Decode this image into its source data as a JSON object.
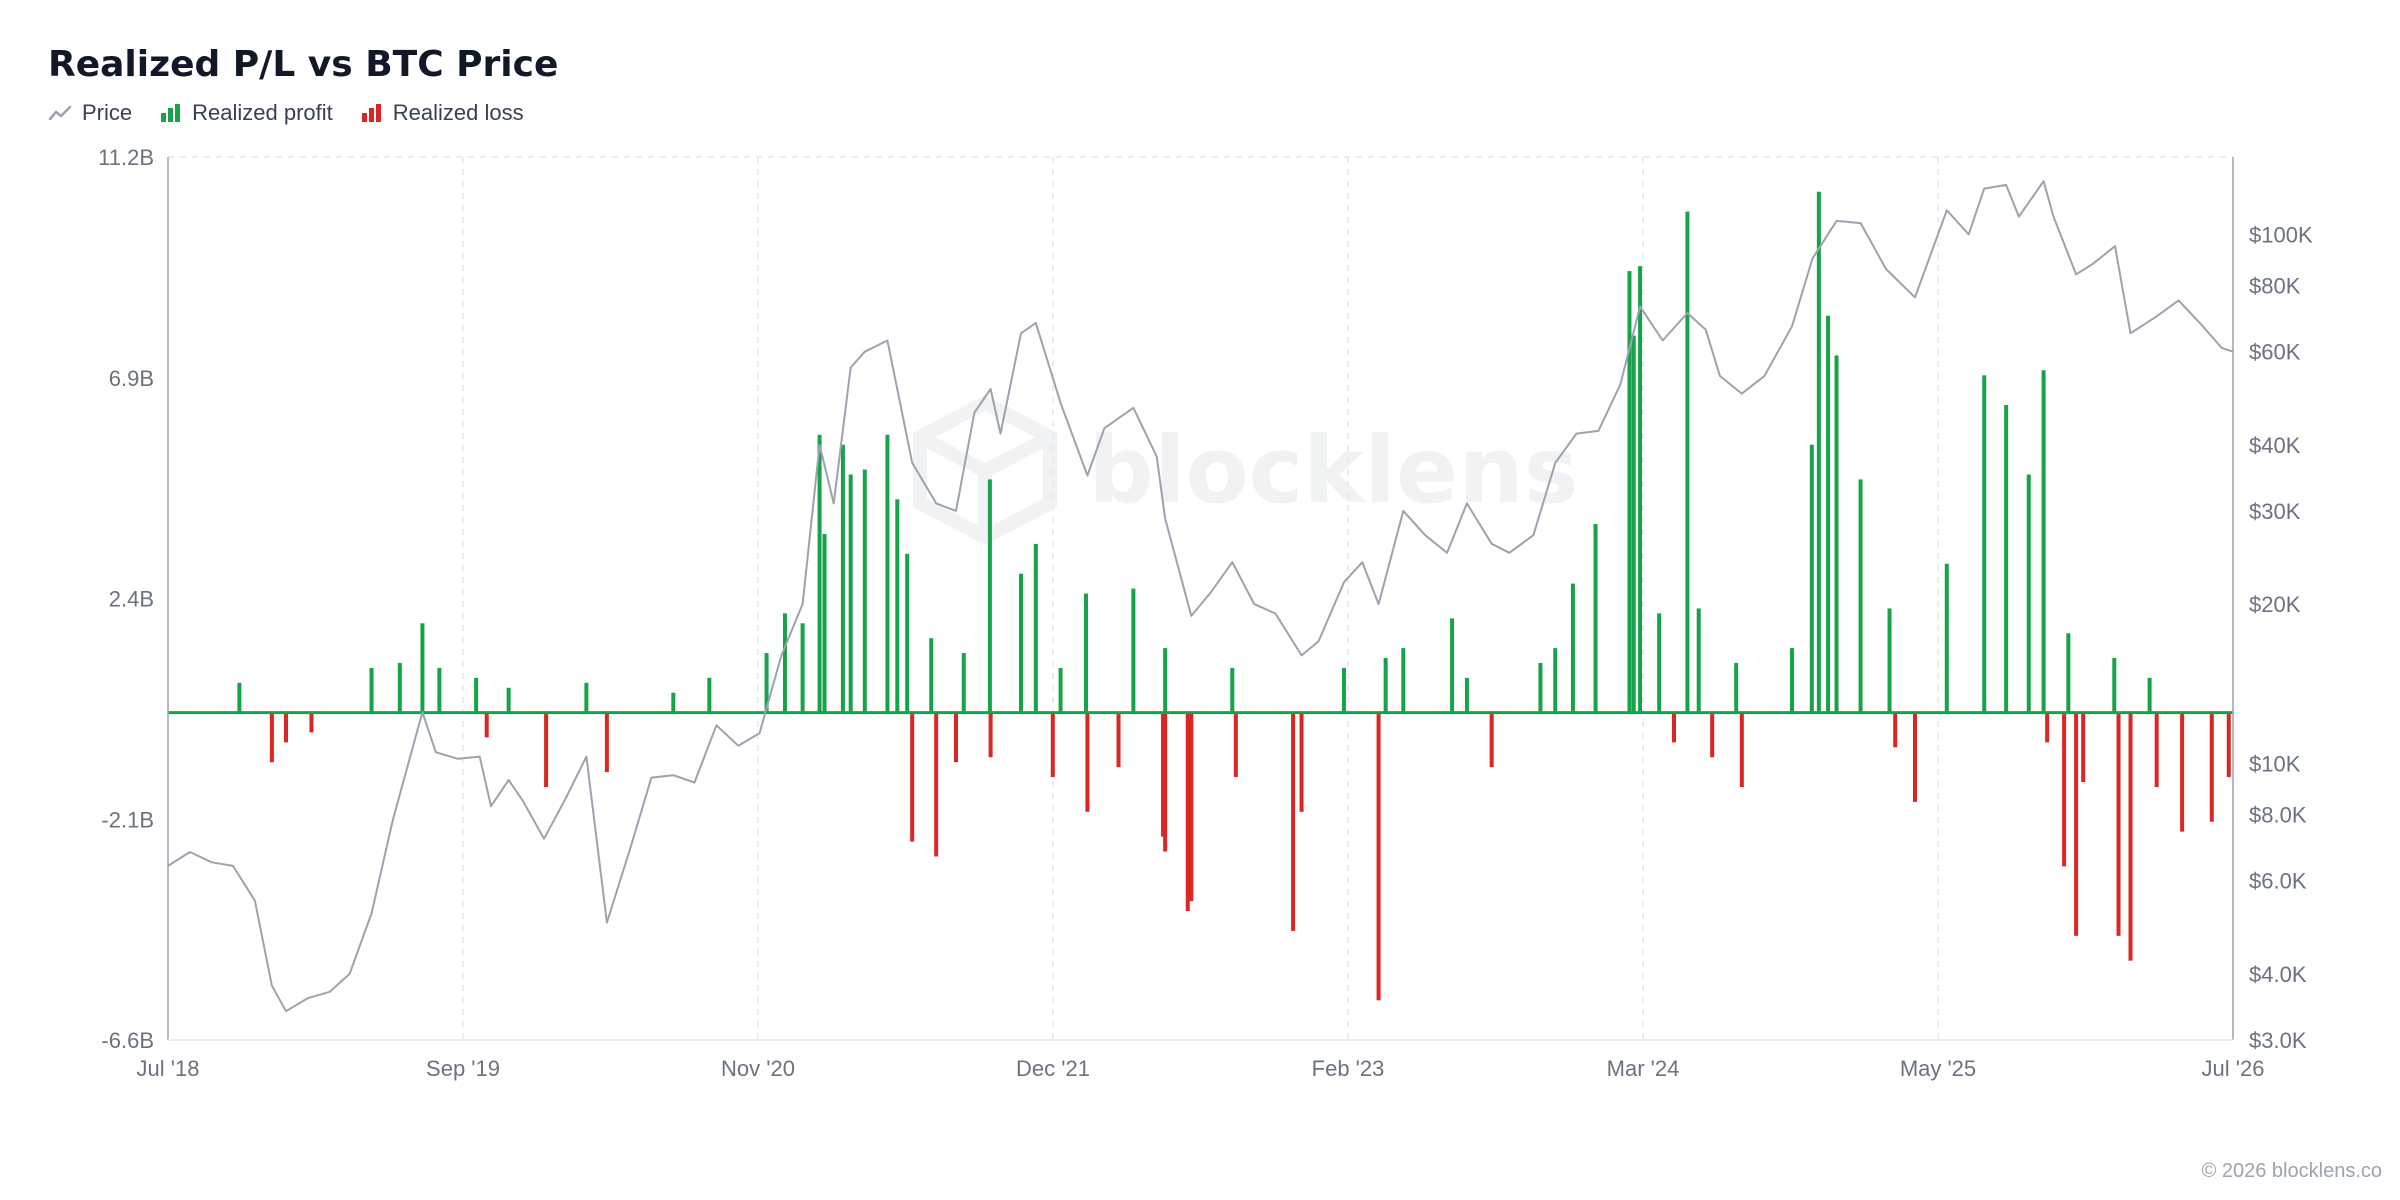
{
  "chart_data": {
    "type": "bar",
    "title": "Realized P/L vs BTC Price",
    "xlabel": "",
    "ylabel": "",
    "legend": {
      "placement": "top-left",
      "items": [
        "Price",
        "Realized profit",
        "Realized loss"
      ]
    },
    "colors": {
      "price": "#9ca3af",
      "profit": "#16a34a",
      "loss": "#dc2626"
    },
    "x_ticks": [
      "Jul '18",
      "Sep '19",
      "Nov '20",
      "Dec '21",
      "Feb '23",
      "Mar '24",
      "May '25",
      "Jul '26"
    ],
    "x_range": [
      "2018-07",
      "2026-07"
    ],
    "y_left": {
      "ticks": [
        "11.2B",
        "6.9B",
        "2.4B",
        "-2.1B",
        "-6.6B"
      ],
      "range": [
        -6.6,
        11.2
      ],
      "unit": "B"
    },
    "y_right": {
      "scale": "log",
      "ticks": [
        "$100K",
        "$80K",
        "$60K",
        "$40K",
        "$30K",
        "$20K",
        "$10K",
        "$8.0K",
        "$6.0K",
        "$4.0K",
        "$3.0K"
      ],
      "tick_values": [
        100000,
        80000,
        60000,
        40000,
        30000,
        20000,
        10000,
        8000,
        6000,
        4000,
        3000
      ],
      "range": [
        3000,
        140000
      ]
    },
    "grid": {
      "vertical": true,
      "horizontal": false
    },
    "series": [
      {
        "name": "Price",
        "type": "line",
        "points": [
          [
            "2018-07-01",
            6400
          ],
          [
            "2018-08-01",
            6800
          ],
          [
            "2018-09-01",
            6500
          ],
          [
            "2018-10-01",
            6400
          ],
          [
            "2018-11-01",
            5500
          ],
          [
            "2018-11-25",
            3800
          ],
          [
            "2018-12-15",
            3400
          ],
          [
            "2019-01-15",
            3600
          ],
          [
            "2019-02-15",
            3700
          ],
          [
            "2019-03-15",
            4000
          ],
          [
            "2019-04-15",
            5200
          ],
          [
            "2019-05-15",
            7800
          ],
          [
            "2019-06-26",
            12500
          ],
          [
            "2019-07-15",
            10500
          ],
          [
            "2019-08-15",
            10200
          ],
          [
            "2019-09-15",
            10300
          ],
          [
            "2019-10-01",
            8300
          ],
          [
            "2019-10-26",
            9300
          ],
          [
            "2019-11-15",
            8500
          ],
          [
            "2019-12-15",
            7200
          ],
          [
            "2020-01-15",
            8600
          ],
          [
            "2020-02-13",
            10300
          ],
          [
            "2020-03-13",
            5000
          ],
          [
            "2020-04-15",
            6900
          ],
          [
            "2020-05-15",
            9400
          ],
          [
            "2020-06-15",
            9500
          ],
          [
            "2020-07-15",
            9200
          ],
          [
            "2020-08-15",
            11800
          ],
          [
            "2020-09-15",
            10800
          ],
          [
            "2020-10-15",
            11400
          ],
          [
            "2020-11-15",
            16000
          ],
          [
            "2020-12-15",
            20000
          ],
          [
            "2021-01-08",
            40000
          ],
          [
            "2021-01-28",
            31000
          ],
          [
            "2021-02-21",
            56000
          ],
          [
            "2021-03-13",
            60000
          ],
          [
            "2021-04-14",
            63000
          ],
          [
            "2021-05-19",
            37000
          ],
          [
            "2021-06-22",
            31000
          ],
          [
            "2021-07-20",
            30000
          ],
          [
            "2021-08-15",
            46000
          ],
          [
            "2021-09-07",
            51000
          ],
          [
            "2021-09-21",
            42000
          ],
          [
            "2021-10-20",
            65000
          ],
          [
            "2021-11-10",
            68000
          ],
          [
            "2021-12-15",
            48000
          ],
          [
            "2022-01-22",
            35000
          ],
          [
            "2022-02-15",
            43000
          ],
          [
            "2022-03-28",
            47000
          ],
          [
            "2022-04-30",
            38000
          ],
          [
            "2022-05-12",
            29000
          ],
          [
            "2022-06-18",
            19000
          ],
          [
            "2022-07-15",
            21000
          ],
          [
            "2022-08-15",
            24000
          ],
          [
            "2022-09-15",
            20000
          ],
          [
            "2022-10-15",
            19200
          ],
          [
            "2022-11-21",
            16000
          ],
          [
            "2022-12-15",
            17000
          ],
          [
            "2023-01-20",
            22000
          ],
          [
            "2023-02-15",
            24000
          ],
          [
            "2023-03-10",
            20000
          ],
          [
            "2023-04-14",
            30000
          ],
          [
            "2023-05-15",
            27000
          ],
          [
            "2023-06-15",
            25000
          ],
          [
            "2023-07-13",
            31000
          ],
          [
            "2023-08-17",
            26000
          ],
          [
            "2023-09-11",
            25000
          ],
          [
            "2023-10-15",
            27000
          ],
          [
            "2023-11-15",
            37000
          ],
          [
            "2023-12-15",
            42000
          ],
          [
            "2024-01-15",
            42500
          ],
          [
            "2024-02-15",
            52000
          ],
          [
            "2024-03-14",
            73000
          ],
          [
            "2024-04-15",
            63000
          ],
          [
            "2024-05-20",
            71000
          ],
          [
            "2024-06-15",
            66000
          ],
          [
            "2024-07-05",
            54000
          ],
          [
            "2024-08-05",
            50000
          ],
          [
            "2024-09-06",
            54000
          ],
          [
            "2024-10-15",
            67000
          ],
          [
            "2024-11-13",
            90000
          ],
          [
            "2024-12-17",
            106000
          ],
          [
            "2025-01-20",
            105000
          ],
          [
            "2025-02-25",
            86000
          ],
          [
            "2025-04-07",
            76000
          ],
          [
            "2025-05-22",
            111000
          ],
          [
            "2025-06-22",
            100000
          ],
          [
            "2025-07-14",
            122000
          ],
          [
            "2025-08-14",
            124000
          ],
          [
            "2025-09-01",
            108000
          ],
          [
            "2025-10-06",
            126000
          ],
          [
            "2025-10-20",
            108000
          ],
          [
            "2025-11-21",
            84000
          ],
          [
            "2025-12-15",
            88000
          ],
          [
            "2026-01-15",
            95000
          ],
          [
            "2026-02-06",
            65000
          ],
          [
            "2026-03-15",
            70000
          ],
          [
            "2026-04-15",
            75000
          ],
          [
            "2026-05-15",
            68000
          ],
          [
            "2026-06-15",
            61000
          ],
          [
            "2026-07-01",
            60000
          ]
        ]
      },
      {
        "name": "Realized profit",
        "type": "bar",
        "unit": "B",
        "points": [
          [
            "2018-10-10",
            0.6
          ],
          [
            "2019-04-15",
            0.9
          ],
          [
            "2019-05-25",
            1.0
          ],
          [
            "2019-06-26",
            1.8
          ],
          [
            "2019-07-20",
            0.9
          ],
          [
            "2019-09-10",
            0.7
          ],
          [
            "2019-10-26",
            0.5
          ],
          [
            "2020-02-13",
            0.6
          ],
          [
            "2020-06-15",
            0.4
          ],
          [
            "2020-08-05",
            0.7
          ],
          [
            "2020-10-25",
            1.2
          ],
          [
            "2020-11-20",
            2.0
          ],
          [
            "2020-12-15",
            1.8
          ],
          [
            "2021-01-08",
            5.6
          ],
          [
            "2021-01-15",
            3.6
          ],
          [
            "2021-02-10",
            5.4
          ],
          [
            "2021-02-21",
            4.8
          ],
          [
            "2021-03-13",
            4.9
          ],
          [
            "2021-04-14",
            5.6
          ],
          [
            "2021-04-28",
            4.3
          ],
          [
            "2021-05-12",
            3.2
          ],
          [
            "2021-06-15",
            1.5
          ],
          [
            "2021-07-31",
            1.2
          ],
          [
            "2021-09-06",
            4.7
          ],
          [
            "2021-10-20",
            2.8
          ],
          [
            "2021-11-10",
            3.4
          ],
          [
            "2021-12-15",
            0.9
          ],
          [
            "2022-01-20",
            2.4
          ],
          [
            "2022-03-28",
            2.5
          ],
          [
            "2022-05-12",
            1.3
          ],
          [
            "2022-08-15",
            0.9
          ],
          [
            "2023-01-20",
            0.9
          ],
          [
            "2023-03-20",
            1.1
          ],
          [
            "2023-04-14",
            1.3
          ],
          [
            "2023-06-22",
            1.9
          ],
          [
            "2023-07-13",
            0.7
          ],
          [
            "2023-10-25",
            1.0
          ],
          [
            "2023-11-15",
            1.3
          ],
          [
            "2023-12-10",
            2.6
          ],
          [
            "2024-01-11",
            3.8
          ],
          [
            "2024-02-28",
            8.9
          ],
          [
            "2024-03-05",
            7.6
          ],
          [
            "2024-03-14",
            9.0
          ],
          [
            "2024-04-10",
            2.0
          ],
          [
            "2024-05-20",
            10.1
          ],
          [
            "2024-06-05",
            2.1
          ],
          [
            "2024-07-28",
            1.0
          ],
          [
            "2024-10-15",
            1.3
          ],
          [
            "2024-11-12",
            5.4
          ],
          [
            "2024-11-22",
            10.5
          ],
          [
            "2024-12-05",
            8.0
          ],
          [
            "2024-12-17",
            7.2
          ],
          [
            "2025-01-20",
            4.7
          ],
          [
            "2025-03-02",
            2.1
          ],
          [
            "2025-05-22",
            3.0
          ],
          [
            "2025-07-14",
            6.8
          ],
          [
            "2025-08-14",
            6.2
          ],
          [
            "2025-09-15",
            4.8
          ],
          [
            "2025-10-06",
            6.9
          ],
          [
            "2025-11-10",
            1.6
          ],
          [
            "2026-01-14",
            1.1
          ],
          [
            "2026-03-05",
            0.7
          ]
        ]
      },
      {
        "name": "Realized loss",
        "type": "bar",
        "unit": "B",
        "points": [
          [
            "2018-11-25",
            -1.0
          ],
          [
            "2018-12-15",
            -0.6
          ],
          [
            "2019-01-20",
            -0.4
          ],
          [
            "2019-09-25",
            -0.5
          ],
          [
            "2019-12-18",
            -1.5
          ],
          [
            "2020-03-13",
            -1.2
          ],
          [
            "2021-05-19",
            -2.6
          ],
          [
            "2021-06-22",
            -2.9
          ],
          [
            "2021-07-20",
            -1.0
          ],
          [
            "2021-09-07",
            -0.9
          ],
          [
            "2021-12-04",
            -1.3
          ],
          [
            "2022-01-22",
            -2.0
          ],
          [
            "2022-03-07",
            -1.1
          ],
          [
            "2022-05-09",
            -2.5
          ],
          [
            "2022-05-12",
            -2.8
          ],
          [
            "2022-06-13",
            -4.0
          ],
          [
            "2022-06-18",
            -3.8
          ],
          [
            "2022-08-20",
            -1.3
          ],
          [
            "2022-11-09",
            -4.4
          ],
          [
            "2022-11-21",
            -2.0
          ],
          [
            "2023-03-10",
            -5.8
          ],
          [
            "2023-08-17",
            -1.1
          ],
          [
            "2024-05-01",
            -0.6
          ],
          [
            "2024-06-24",
            -0.9
          ],
          [
            "2024-08-05",
            -1.5
          ],
          [
            "2025-03-10",
            -0.7
          ],
          [
            "2025-04-07",
            -1.8
          ],
          [
            "2025-10-11",
            -0.6
          ],
          [
            "2025-11-04",
            -3.1
          ],
          [
            "2025-11-21",
            -4.5
          ],
          [
            "2025-12-01",
            -1.4
          ],
          [
            "2026-01-20",
            -4.5
          ],
          [
            "2026-02-06",
            -5.0
          ],
          [
            "2026-03-15",
            -1.5
          ],
          [
            "2026-04-20",
            -2.4
          ],
          [
            "2026-06-01",
            -2.2
          ],
          [
            "2026-06-25",
            -1.3
          ]
        ]
      }
    ]
  },
  "footer": "© 2026 blocklens.co",
  "watermark": "blocklens"
}
